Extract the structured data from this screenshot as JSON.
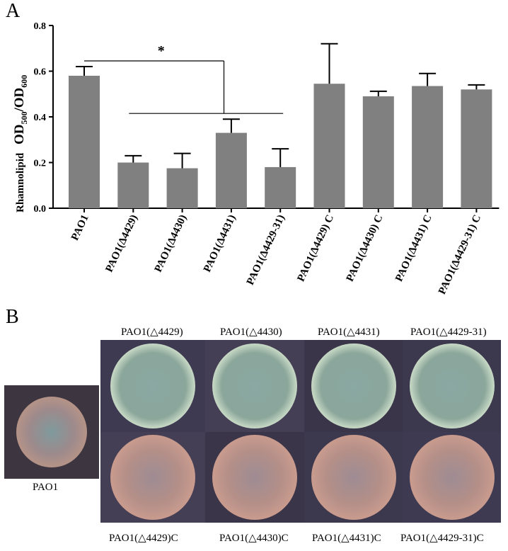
{
  "panels": {
    "a_label": "A",
    "b_label": "B"
  },
  "chart_data": {
    "type": "bar",
    "title": "",
    "ylabel_prefix": "Rhamnolipid",
    "ylabel_od1": "OD",
    "ylabel_sub1": "500",
    "ylabel_slash": "/",
    "ylabel_od2": "OD",
    "ylabel_sub2": "600",
    "ylim": [
      0,
      0.8
    ],
    "yticks": [
      "0.0",
      "0.2",
      "0.4",
      "0.6",
      "0.8"
    ],
    "categories": [
      "PAO1",
      "PAO1(Δ4429)",
      "PAO1(Δ4430)",
      "PAO1(Δ4431)",
      "PAO1(Δ4429-31)",
      "PAO1(Δ4429) C",
      "PAO1(Δ4430) C",
      "PAO1(Δ4431) C",
      "PAO1(Δ4429-31) C"
    ],
    "values": [
      0.58,
      0.2,
      0.175,
      0.33,
      0.18,
      0.545,
      0.49,
      0.535,
      0.52
    ],
    "errors": [
      0.04,
      0.03,
      0.065,
      0.06,
      0.08,
      0.175,
      0.022,
      0.055,
      0.02
    ],
    "significance": "*",
    "bar_color": "#808080"
  },
  "plates": {
    "wt_label": "PAO1",
    "top_labels": [
      "PAO1(△4429)",
      "PAO1(△4430)",
      "PAO1(△4431)",
      "PAO1(△4429-31)"
    ],
    "bottom_labels": [
      "PAO1(△4429)C",
      "PAO1(△4430)C",
      "PAO1(△4431)C",
      "PAO1(△4429-31)C"
    ],
    "colors": {
      "plate_bg": "#3b3548",
      "mutant_colony": "#8fa79a",
      "complemented_colony": "#b88f86",
      "wt_colony": "#a99089"
    }
  }
}
